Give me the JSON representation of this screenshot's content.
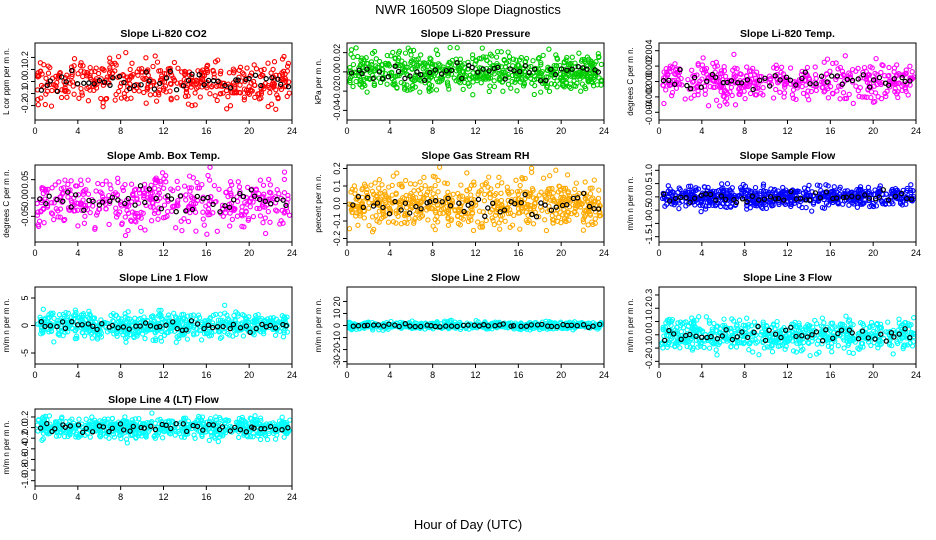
{
  "page": {
    "title": "NWR  160509  Slope Diagnostics",
    "xlabel": "Hour of Day (UTC)"
  },
  "chart_data": [
    {
      "type": "scatter",
      "title": "Slope Li-820 CO2",
      "ylabel": "L cor ppm per m n.",
      "color": "#ff0000",
      "xlim": [
        0,
        24
      ],
      "ylim": [
        -0.32,
        0.32
      ],
      "xticks": [
        0,
        4,
        8,
        12,
        16,
        20,
        24
      ],
      "yticks": [
        -0.2,
        -0.1,
        0.0,
        0.1,
        0.2
      ],
      "yticklabels": [
        "-0.2",
        "-0.1",
        "0.0",
        "0.1",
        "0.2"
      ],
      "spread": 0.09,
      "mean": 0.0,
      "density": "medium"
    },
    {
      "type": "scatter",
      "title": "Slope Li-820 Pressure",
      "ylabel": "kPa per m n.",
      "color": "#00cc00",
      "xlim": [
        0,
        24
      ],
      "ylim": [
        -0.05,
        0.03
      ],
      "xticks": [
        0,
        4,
        8,
        12,
        16,
        20,
        24
      ],
      "yticks": [
        -0.04,
        -0.02,
        0.0,
        0.02
      ],
      "yticklabels": [
        "-0.04",
        "-0.02",
        "0.00",
        "0.02"
      ],
      "spread": 0.01,
      "mean": 0.0,
      "density": "dense"
    },
    {
      "type": "scatter",
      "title": "Slope Li-820 Temp.",
      "ylabel": "degrees C per m n.",
      "color": "#ff00ff",
      "xlim": [
        0,
        24
      ],
      "ylim": [
        -0.005,
        0.005
      ],
      "xticks": [
        0,
        4,
        8,
        12,
        16,
        20,
        24
      ],
      "yticks": [
        -0.004,
        -0.002,
        0.0,
        0.002,
        0.004
      ],
      "yticklabels": [
        "-0.004",
        "-0.002",
        "0.000",
        "0.002",
        "0.004"
      ],
      "spread": 0.0012,
      "mean": 0.0,
      "density": "medium"
    },
    {
      "type": "scatter",
      "title": "Slope Amb. Box Temp.",
      "ylabel": "degrees C per m n.",
      "color": "#ff00ff",
      "xlim": [
        0,
        24
      ],
      "ylim": [
        -0.12,
        0.09
      ],
      "xticks": [
        0,
        4,
        8,
        12,
        16,
        20,
        24
      ],
      "yticks": [
        -0.05,
        0.0,
        0.05
      ],
      "yticklabels": [
        "-0.05",
        "0.00",
        "0.05"
      ],
      "spread": 0.035,
      "mean": -0.01,
      "density": "medium"
    },
    {
      "type": "scatter",
      "title": "Slope Gas Stream RH",
      "ylabel": "percent per m n.",
      "color": "#ffaa00",
      "xlim": [
        0,
        24
      ],
      "ylim": [
        -0.22,
        0.22
      ],
      "xticks": [
        0,
        4,
        8,
        12,
        16,
        20,
        24
      ],
      "yticks": [
        -0.2,
        -0.1,
        0.0,
        0.1,
        0.2
      ],
      "yticklabels": [
        "-0.2",
        "-0.1",
        "0.0",
        "0.1",
        "0.2"
      ],
      "spread": 0.07,
      "mean": 0.0,
      "density": "dense"
    },
    {
      "type": "scatter",
      "title": "Slope Sample Flow",
      "ylabel": "m/m n per m n.",
      "color": "#0000ff",
      "xlim": [
        0,
        24
      ],
      "ylim": [
        -1.7,
        1.2
      ],
      "xticks": [
        0,
        4,
        8,
        12,
        16,
        20,
        24
      ],
      "yticks": [
        -1.5,
        -1.0,
        -0.5,
        0.0,
        0.5,
        1.0
      ],
      "yticklabels": [
        "-1.5",
        "-1.0",
        "-0.5",
        "0.0",
        "0.5",
        "1.0"
      ],
      "spread": 0.2,
      "mean": 0.0,
      "density": "dense"
    },
    {
      "type": "scatter",
      "title": "Slope Line 1 Flow",
      "ylabel": "m/m n per m n.",
      "color": "#00ffff",
      "xlim": [
        0,
        24
      ],
      "ylim": [
        -7,
        7
      ],
      "xticks": [
        0,
        4,
        8,
        12,
        16,
        20,
        24
      ],
      "yticks": [
        -5,
        0,
        5
      ],
      "yticklabels": [
        "-5",
        "0",
        "5"
      ],
      "spread": 1.2,
      "mean": 0.0,
      "density": "dense"
    },
    {
      "type": "scatter",
      "title": "Slope Line 2 Flow",
      "ylabel": "m/m n per m n.",
      "color": "#00ffff",
      "xlim": [
        0,
        24
      ],
      "ylim": [
        -32,
        32
      ],
      "xticks": [
        0,
        4,
        8,
        12,
        16,
        20,
        24
      ],
      "yticks": [
        -30,
        -20,
        -10,
        0,
        10,
        20
      ],
      "yticklabels": [
        "-30",
        "-20",
        "-10",
        "0",
        "10",
        "20"
      ],
      "spread": 1.5,
      "mean": 0.0,
      "density": "dense"
    },
    {
      "type": "scatter",
      "title": "Slope Line 3 Flow",
      "ylabel": "m/m n per m n.",
      "color": "#00ffff",
      "xlim": [
        0,
        24
      ],
      "ylim": [
        -0.22,
        0.36
      ],
      "xticks": [
        0,
        4,
        8,
        12,
        16,
        20,
        24
      ],
      "yticks": [
        -0.2,
        -0.1,
        0.0,
        0.1,
        0.2,
        0.3
      ],
      "yticklabels": [
        "-0.2",
        "-0.1",
        "0.0",
        "0.1",
        "0.2",
        "0.3"
      ],
      "spread": 0.06,
      "mean": 0.0,
      "density": "dense"
    },
    {
      "type": "scatter",
      "title": "Slope Line 4 (LT) Flow",
      "ylabel": "m/m n per m n.",
      "color": "#00ffff",
      "xlim": [
        0,
        24
      ],
      "ylim": [
        -1.1,
        0.35
      ],
      "xticks": [
        0,
        4,
        8,
        12,
        16,
        20,
        24
      ],
      "yticks": [
        -1.0,
        -0.8,
        -0.6,
        -0.4,
        -0.2,
        0.0,
        0.2
      ],
      "yticklabels": [
        "-1.0",
        "-0.8",
        "-0.6",
        "-0.4",
        "-0.2",
        "0.0",
        "0.2"
      ],
      "spread": 0.1,
      "mean": 0.0,
      "density": "dense"
    }
  ]
}
